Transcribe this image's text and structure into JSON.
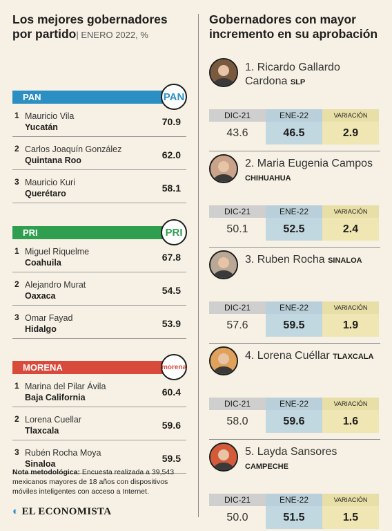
{
  "left": {
    "title_line1": "Los mejores gobernadores",
    "title_line2": "por partido",
    "subtitle": "| ENERO 2022, %",
    "parties": [
      {
        "name": "PAN",
        "color": "#2b8fc4",
        "logo": "PAN",
        "rows": [
          {
            "num": "1",
            "name": "Mauricio Vila",
            "state": "Yucatán",
            "value": "70.9"
          },
          {
            "num": "2",
            "name": "Carlos Joaquín González",
            "state": "Quintana Roo",
            "value": "62.0"
          },
          {
            "num": "3",
            "name": "Mauricio Kuri",
            "state": "Querétaro",
            "value": "58.1"
          }
        ]
      },
      {
        "name": "PRI",
        "color": "#2f9e4f",
        "logo": "PRI",
        "rows": [
          {
            "num": "1",
            "name": "Miguel Riquelme",
            "state": "Coahuila",
            "value": "67.8"
          },
          {
            "num": "2",
            "name": "Alejandro Murat",
            "state": "Oaxaca",
            "value": "54.5"
          },
          {
            "num": "3",
            "name": "Omar Fayad",
            "state": "Hidalgo",
            "value": "53.9"
          }
        ]
      },
      {
        "name": "MORENA",
        "color": "#d84a3c",
        "logo": "morena",
        "rows": [
          {
            "num": "1",
            "name": "Marina del Pilar Ávila",
            "state": "Baja California",
            "value": "60.4"
          },
          {
            "num": "2",
            "name": "Lorena Cuellar",
            "state": "Tlaxcala",
            "value": "59.6"
          },
          {
            "num": "3",
            "name": "Rubén Rocha Moya",
            "state": "Sinaloa",
            "value": "59.5"
          }
        ]
      }
    ],
    "note_label": "Nota metodológica:",
    "note_text": " Encuesta realizada a 39,543 mexicanos mayores de 18 años con dispositivos móviles inteligentes con acceso a Internet.",
    "brand": "EL ECONOMISTA"
  },
  "right": {
    "title_line1": "Gobernadores con mayor",
    "title_line2": "incremento en su aprobación",
    "headers": {
      "dic": "DIC-21",
      "ene": "ENE-22",
      "var": "VARIACIÓN"
    },
    "governors": [
      {
        "rank_name": "1. Ricardo Gallardo Cardona",
        "state": "SLP",
        "dic": "43.6",
        "ene": "46.5",
        "var": "2.9"
      },
      {
        "rank_name": "2. Maria Eugenia Campos",
        "state": "CHIHUAHUA",
        "dic": "50.1",
        "ene": "52.5",
        "var": "2.4"
      },
      {
        "rank_name": "3. Ruben Rocha",
        "state": "SINALOA",
        "dic": "57.6",
        "ene": "59.5",
        "var": "1.9"
      },
      {
        "rank_name": "4. Lorena Cuéllar",
        "state": "TLAXCALA",
        "dic": "58.0",
        "ene": "59.6",
        "var": "1.6"
      },
      {
        "rank_name": "5. Layda Sansores",
        "state": "CAMPECHE",
        "dic": "50.0",
        "ene": "51.5",
        "var": "1.5"
      }
    ]
  }
}
